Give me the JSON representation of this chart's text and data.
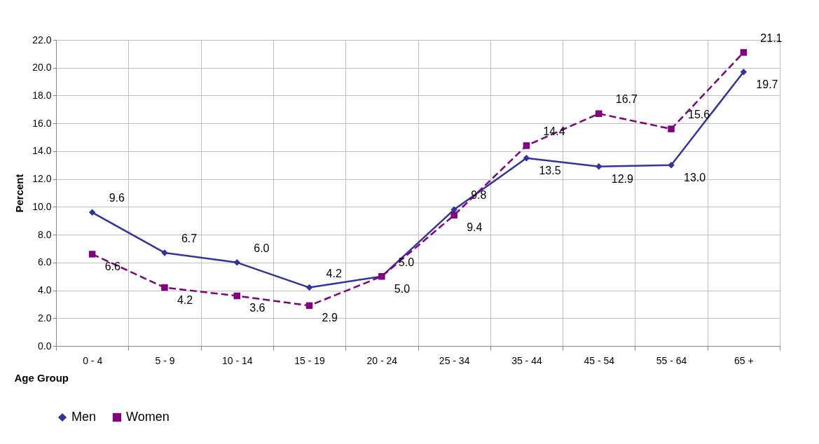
{
  "chart_data": {
    "type": "line",
    "xlabel": "Age Group",
    "ylabel": "Percent",
    "categories": [
      "0 - 4",
      "5 - 9",
      "10 - 14",
      "15 - 19",
      "20 - 24",
      "25 - 34",
      "35 - 44",
      "45 - 54",
      "55 - 64",
      "65 +"
    ],
    "series": [
      {
        "name": "Men",
        "color": "#333399",
        "marker": "diamond",
        "line_style": "solid",
        "values": [
          9.6,
          6.7,
          6.0,
          4.2,
          5.0,
          9.8,
          13.5,
          12.9,
          13.0,
          19.7
        ],
        "value_labels": [
          "9.6",
          "6.7",
          "6.0",
          "4.2",
          "5.0",
          "9.8",
          "13.5",
          "12.9",
          "13.0",
          "19.7"
        ]
      },
      {
        "name": "Women",
        "color": "#800080",
        "marker": "square",
        "line_style": "dashed",
        "values": [
          6.6,
          4.2,
          3.6,
          2.9,
          5.0,
          9.4,
          14.4,
          16.7,
          15.6,
          21.1
        ],
        "value_labels": [
          "6.6",
          "4.2",
          "3.6",
          "2.9",
          "5.0",
          "9.4",
          "14.4",
          "16.7",
          "15.6",
          "21.1"
        ]
      }
    ],
    "ylim": [
      0,
      22
    ],
    "yticks": [
      {
        "value": 0,
        "label": "0.0"
      },
      {
        "value": 2,
        "label": "2.0"
      },
      {
        "value": 4,
        "label": "4.0"
      },
      {
        "value": 6,
        "label": "6.0"
      },
      {
        "value": 8,
        "label": "8.0"
      },
      {
        "value": 10,
        "label": "10.0"
      },
      {
        "value": 12,
        "label": "12.0"
      },
      {
        "value": 14,
        "label": "14.0"
      },
      {
        "value": 16,
        "label": "16.0"
      },
      {
        "value": 18,
        "label": "18.0"
      },
      {
        "value": 20,
        "label": "20.0"
      },
      {
        "value": 22,
        "label": "22.0"
      }
    ],
    "grid": true,
    "legend": "bottom"
  }
}
